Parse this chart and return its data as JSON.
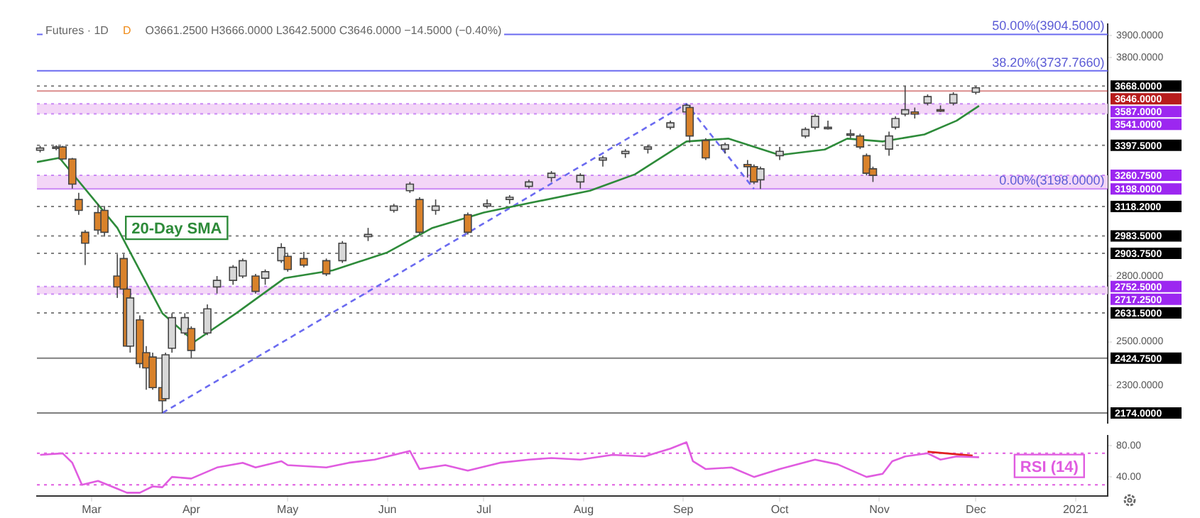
{
  "chart_data": [
    {
      "type": "candlestick",
      "title": "Futures · 1D",
      "subtitle": "O3661.2500 H3666.0000 L3642.5000 C3646.0000 −14.5000 (−0.40%)",
      "annotations": [
        "D",
        {
          "text": "50.00%(3904.5000)",
          "x": "2021-01-10",
          "y": 3904.5
        },
        {
          "text": "38.20%(3737.7660)",
          "x": "2021-01-10",
          "y": 3737.766
        },
        {
          "text": "0.00%(3198.0000)",
          "x": "2021-01-10",
          "y": 3198
        }
      ],
      "x": [
        "2020-02-14",
        "2020-02-19",
        "2020-02-21",
        "2020-02-24",
        "2020-02-26",
        "2020-02-28",
        "2020-03-03",
        "2020-03-05",
        "2020-03-09",
        "2020-03-11",
        "2020-03-12",
        "2020-03-13",
        "2020-03-16",
        "2020-03-18",
        "2020-03-20",
        "2020-03-23",
        "2020-03-24",
        "2020-03-26",
        "2020-03-30",
        "2020-04-01",
        "2020-04-06",
        "2020-04-09",
        "2020-04-14",
        "2020-04-17",
        "2020-04-21",
        "2020-04-24",
        "2020-04-29",
        "2020-05-01",
        "2020-05-06",
        "2020-05-13",
        "2020-05-18",
        "2020-05-26",
        "2020-06-03",
        "2020-06-08",
        "2020-06-11",
        "2020-06-16",
        "2020-06-26",
        "2020-07-02",
        "2020-07-09",
        "2020-07-15",
        "2020-07-22",
        "2020-07-31",
        "2020-08-07",
        "2020-08-14",
        "2020-08-21",
        "2020-08-28",
        "2020-09-02",
        "2020-09-03",
        "2020-09-08",
        "2020-09-14",
        "2020-09-21",
        "2020-09-23",
        "2020-09-25",
        "2020-10-01",
        "2020-10-09",
        "2020-10-12",
        "2020-10-16",
        "2020-10-23",
        "2020-10-26",
        "2020-10-28",
        "2020-10-30",
        "2020-11-04",
        "2020-11-06",
        "2020-11-09",
        "2020-11-12",
        "2020-11-16",
        "2020-11-20",
        "2020-11-24",
        "2020-12-01"
      ],
      "ohlc": [
        [
          3375,
          3395,
          3365,
          3385
        ],
        [
          3385,
          3397.5,
          3375,
          3390
        ],
        [
          3390,
          3395,
          3330,
          3335
        ],
        [
          3335,
          3340,
          3200,
          3220
        ],
        [
          3150,
          3180,
          3080,
          3100
        ],
        [
          3000,
          3010,
          2850,
          2950
        ],
        [
          3090,
          3130,
          2990,
          3010
        ],
        [
          3100,
          3120,
          2980,
          3000
        ],
        [
          2800,
          2900,
          2700,
          2750
        ],
        [
          2880,
          2900,
          2730,
          2740
        ],
        [
          2740,
          2750,
          2480,
          2480
        ],
        [
          2480,
          2710,
          2450,
          2700
        ],
        [
          2600,
          2620,
          2380,
          2400
        ],
        [
          2450,
          2480,
          2280,
          2380
        ],
        [
          2430,
          2450,
          2280,
          2290
        ],
        [
          2290,
          2320,
          2174,
          2230
        ],
        [
          2240,
          2450,
          2230,
          2440
        ],
        [
          2470,
          2630,
          2450,
          2610
        ],
        [
          2540,
          2630,
          2530,
          2610
        ],
        [
          2560,
          2570,
          2424.75,
          2460
        ],
        [
          2540,
          2670,
          2530,
          2650
        ],
        [
          2750,
          2800,
          2720,
          2780
        ],
        [
          2780,
          2850,
          2760,
          2840
        ],
        [
          2800,
          2880,
          2790,
          2870
        ],
        [
          2800,
          2810,
          2720,
          2730
        ],
        [
          2790,
          2830,
          2760,
          2820
        ],
        [
          2870,
          2950,
          2860,
          2930
        ],
        [
          2890,
          2900,
          2820,
          2830
        ],
        [
          2880,
          2910,
          2840,
          2850
        ],
        [
          2870,
          2880,
          2800,
          2810
        ],
        [
          2870,
          2960,
          2860,
          2950
        ],
        [
          2980,
          3020,
          2960,
          2990
        ],
        [
          3100,
          3130,
          3090,
          3120
        ],
        [
          3190,
          3230,
          3180,
          3220
        ],
        [
          3150,
          3160,
          2990,
          3000
        ],
        [
          3100,
          3150,
          3080,
          3120
        ],
        [
          3080,
          3090,
          2990,
          3000
        ],
        [
          3120,
          3150,
          3110,
          3130
        ],
        [
          3150,
          3170,
          3130,
          3160
        ],
        [
          3210,
          3240,
          3200,
          3230
        ],
        [
          3250,
          3280,
          3230,
          3270
        ],
        [
          3230,
          3270,
          3200,
          3260
        ],
        [
          3330,
          3350,
          3300,
          3340
        ],
        [
          3360,
          3380,
          3340,
          3370
        ],
        [
          3380,
          3400,
          3360,
          3390
        ],
        [
          3480,
          3510,
          3470,
          3500
        ],
        [
          3550,
          3587,
          3540,
          3580
        ],
        [
          3570,
          3580,
          3410,
          3440
        ],
        [
          3420,
          3430,
          3330,
          3340
        ],
        [
          3380,
          3410,
          3360,
          3400
        ],
        [
          3310,
          3330,
          3250,
          3300
        ],
        [
          3300,
          3310,
          3220,
          3230
        ],
        [
          3240,
          3300,
          3198,
          3290
        ],
        [
          3350,
          3390,
          3330,
          3370
        ],
        [
          3440,
          3480,
          3430,
          3470
        ],
        [
          3480,
          3540,
          3470,
          3530
        ],
        [
          3480,
          3510,
          3470,
          3480
        ],
        [
          3450,
          3470,
          3430,
          3450
        ],
        [
          3440,
          3450,
          3380,
          3390
        ],
        [
          3350,
          3360,
          3260,
          3270
        ],
        [
          3290,
          3300,
          3230,
          3260
        ],
        [
          3380,
          3460,
          3350,
          3440
        ],
        [
          3480,
          3530,
          3470,
          3520
        ],
        [
          3540,
          3668,
          3530,
          3560
        ],
        [
          3550,
          3570,
          3520,
          3540
        ],
        [
          3590,
          3630,
          3580,
          3620
        ],
        [
          3560,
          3580,
          3550,
          3555
        ],
        [
          3590,
          3640,
          3580,
          3630
        ],
        [
          3640,
          3666,
          3630,
          3660
        ]
      ],
      "series": [
        {
          "type": "line",
          "name": "20-Day SMA",
          "color": "#2e8b3a",
          "x": [
            "2020-02-13",
            "2020-02-20",
            "2020-03-09",
            "2020-03-23",
            "2020-04-02",
            "2020-04-15",
            "2020-04-30",
            "2020-05-15",
            "2020-06-01",
            "2020-06-15",
            "2020-07-01",
            "2020-07-15",
            "2020-08-03",
            "2020-08-17",
            "2020-09-02",
            "2020-09-15",
            "2020-10-01",
            "2020-10-15",
            "2020-10-22",
            "2020-11-02",
            "2020-11-15",
            "2020-11-25",
            "2020-12-02"
          ],
          "values": [
            3321,
            3340,
            3020,
            2630,
            2500,
            2630,
            2790,
            2826,
            2908,
            3020,
            3090,
            3133,
            3190,
            3265,
            3415,
            3428,
            3353,
            3378,
            3428,
            3415,
            3447,
            3510,
            3578
          ]
        },
        {
          "type": "line",
          "color": "#6b6bf0",
          "line_style": "dashed",
          "x": [
            "2020-03-23",
            "2020-09-02",
            "2020-09-23"
          ],
          "values": [
            2174,
            3587,
            3198
          ]
        }
      ],
      "marker": "none",
      "xlim": [
        "2020-02-13",
        "2021-01-11"
      ],
      "ylim": [
        2130,
        3950
      ],
      "yticks": [
        {
          "value": 2300,
          "label": "2300.0000"
        },
        {
          "value": 2500,
          "label": "2500.0000"
        },
        {
          "value": 2800,
          "label": "2800.0000"
        },
        {
          "value": 3800,
          "label": "3800.0000"
        },
        {
          "value": 3900,
          "label": "3900.0000"
        }
      ],
      "tick_labels": "y",
      "bands": [
        {
          "axis": "y",
          "from": 3541,
          "to": 3587,
          "color": "#f3d6f7"
        },
        {
          "axis": "y",
          "from": 3198,
          "to": 3260.75,
          "color": "#f3d6f7"
        },
        {
          "axis": "y",
          "from": 2717.25,
          "to": 2752.5,
          "color": "#f3d6f7"
        }
      ],
      "ref_lines": [
        {
          "axis": "y",
          "value": 3904.5,
          "color": "#6b6bf0",
          "line_style": "solid"
        },
        {
          "axis": "y",
          "value": 3737.766,
          "color": "#6b6bf0",
          "line_style": "solid"
        },
        {
          "axis": "y",
          "value": 3668,
          "label": "3668.0000",
          "color": "#000000",
          "line_style": "dashed"
        },
        {
          "axis": "y",
          "value": 3646,
          "label": "3646.0000",
          "color": "#b71c1c",
          "line_style": "solid"
        },
        {
          "axis": "y",
          "value": 3587,
          "label": "3587.0000",
          "color": "#9c27f0",
          "line_style": "dashed"
        },
        {
          "axis": "y",
          "value": 3541,
          "label": "3541.0000",
          "color": "#9c27f0",
          "line_style": "dashed"
        },
        {
          "axis": "y",
          "value": 3397.5,
          "label": "3397.5000",
          "color": "#000000",
          "line_style": "dashed"
        },
        {
          "axis": "y",
          "value": 3260.75,
          "label": "3260.7500",
          "color": "#9c27f0",
          "line_style": "dashed"
        },
        {
          "axis": "y",
          "value": 3198,
          "label": "3198.0000",
          "color": "#9c27f0",
          "line_style": "solid"
        },
        {
          "axis": "y",
          "value": 3118.2,
          "label": "3118.2000",
          "color": "#000000",
          "line_style": "dashed"
        },
        {
          "axis": "y",
          "value": 2983.5,
          "label": "2983.5000",
          "color": "#000000",
          "line_style": "dashed"
        },
        {
          "axis": "y",
          "value": 2903.75,
          "label": "2903.7500",
          "color": "#000000",
          "line_style": "dashed"
        },
        {
          "axis": "y",
          "value": 2752.5,
          "label": "2752.5000",
          "color": "#9c27f0",
          "line_style": "dashed"
        },
        {
          "axis": "y",
          "value": 2717.25,
          "label": "2717.2500",
          "color": "#9c27f0",
          "line_style": "dashed"
        },
        {
          "axis": "y",
          "value": 2631.5,
          "label": "2631.5000",
          "color": "#000000",
          "line_style": "dashed"
        },
        {
          "axis": "y",
          "value": 2424.75,
          "label": "2424.7500",
          "color": "#000000",
          "line_style": "solid"
        },
        {
          "axis": "y",
          "value": 2174,
          "label": "2174.0000",
          "color": "#000000",
          "line_style": "solid"
        }
      ]
    },
    {
      "type": "line",
      "series": [
        {
          "name": "RSI (14)",
          "color": "#e05ce0",
          "x": [
            "2020-02-14",
            "2020-02-21",
            "2020-02-24",
            "2020-02-27",
            "2020-03-03",
            "2020-03-09",
            "2020-03-12",
            "2020-03-16",
            "2020-03-20",
            "2020-03-23",
            "2020-03-26",
            "2020-04-01",
            "2020-04-09",
            "2020-04-17",
            "2020-04-21",
            "2020-04-29",
            "2020-05-01",
            "2020-05-13",
            "2020-05-20",
            "2020-05-28",
            "2020-06-08",
            "2020-06-11",
            "2020-06-19",
            "2020-06-26",
            "2020-07-06",
            "2020-07-15",
            "2020-07-22",
            "2020-07-31",
            "2020-08-10",
            "2020-08-20",
            "2020-08-28",
            "2020-09-02",
            "2020-09-04",
            "2020-09-08",
            "2020-09-16",
            "2020-09-23",
            "2020-10-01",
            "2020-10-12",
            "2020-10-19",
            "2020-10-28",
            "2020-11-02",
            "2020-11-05",
            "2020-11-09",
            "2020-11-16",
            "2020-11-20",
            "2020-11-25",
            "2020-12-02"
          ],
          "values": [
            68,
            70,
            58,
            30,
            35,
            25,
            20,
            20,
            28,
            27,
            40,
            38,
            52,
            58,
            52,
            60,
            55,
            52,
            58,
            62,
            73,
            50,
            55,
            48,
            58,
            62,
            64,
            62,
            68,
            66,
            76,
            84,
            60,
            50,
            52,
            40,
            50,
            62,
            56,
            40,
            44,
            60,
            66,
            70,
            62,
            66,
            65
          ]
        },
        {
          "color": "#e02020",
          "x": [
            "2020-11-16",
            "2020-11-30"
          ],
          "values": [
            72,
            67
          ]
        }
      ],
      "marker": "none",
      "xlim": [
        "2020-02-13",
        "2021-01-11"
      ],
      "xticks": [
        {
          "value": "2020-03-01",
          "label": "Mar"
        },
        {
          "value": "2020-04-01",
          "label": "Apr"
        },
        {
          "value": "2020-05-01",
          "label": "May"
        },
        {
          "value": "2020-06-01",
          "label": "Jun"
        },
        {
          "value": "2020-07-01",
          "label": "Jul"
        },
        {
          "value": "2020-08-01",
          "label": "Aug"
        },
        {
          "value": "2020-09-01",
          "label": "Sep"
        },
        {
          "value": "2020-10-01",
          "label": "Oct"
        },
        {
          "value": "2020-11-01",
          "label": "Nov"
        },
        {
          "value": "2020-12-01",
          "label": "Dec"
        },
        {
          "value": "2021-01-01",
          "label": "2021"
        }
      ],
      "ylim": [
        16,
        92
      ],
      "yticks": [
        {
          "value": 40,
          "label": "40.00"
        },
        {
          "value": 80,
          "label": "80.00"
        }
      ],
      "ref_lines": [
        {
          "axis": "y",
          "value": 70,
          "color": "#e05ce0",
          "line_style": "dashed"
        },
        {
          "axis": "y",
          "value": 30,
          "color": "#e05ce0",
          "line_style": "dashed"
        }
      ]
    }
  ]
}
